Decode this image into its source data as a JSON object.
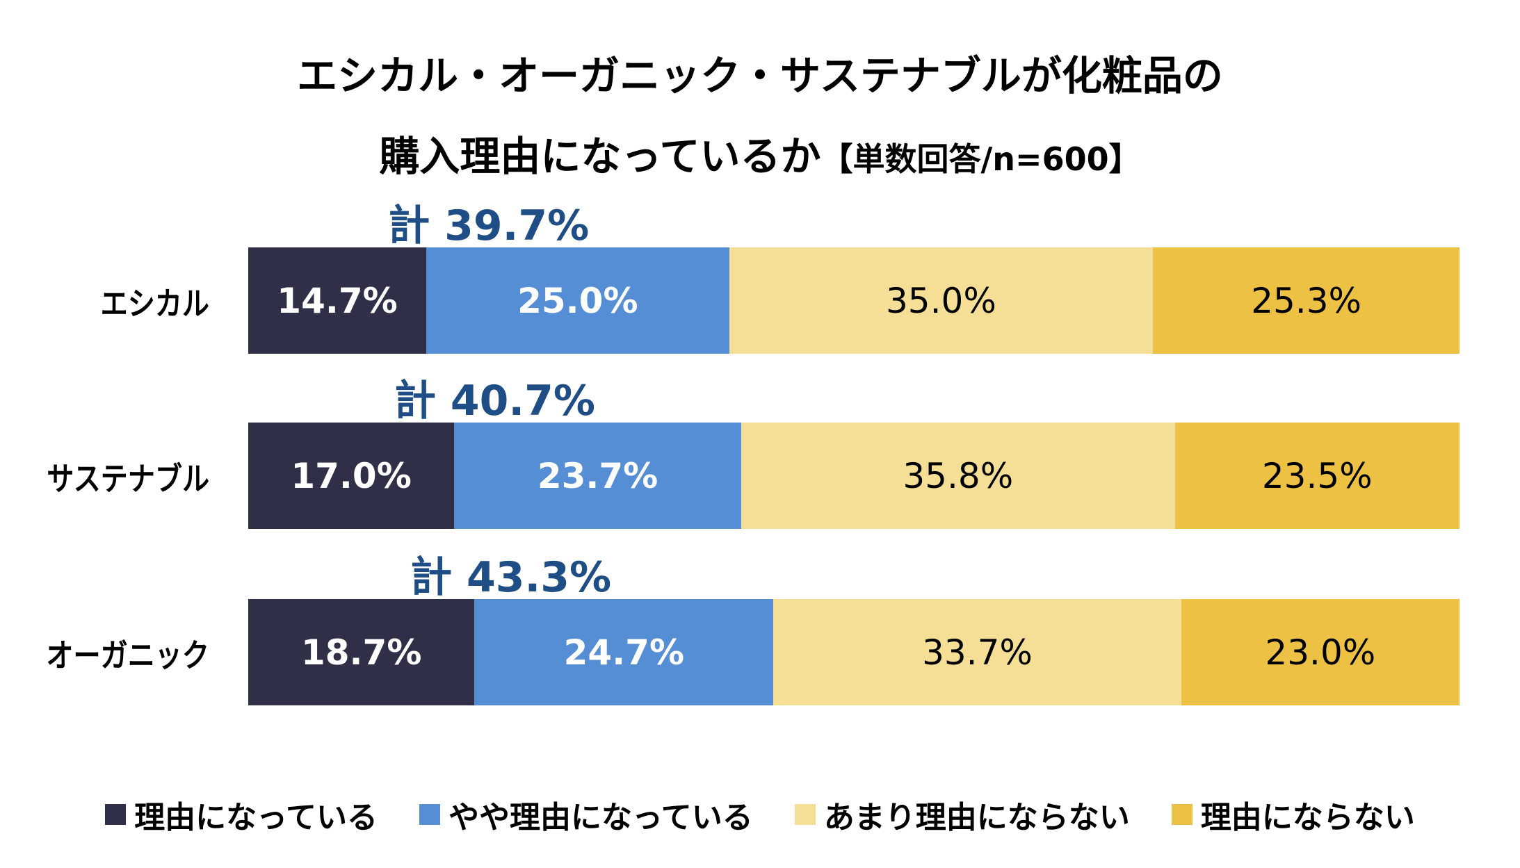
{
  "chart_data": {
    "type": "bar",
    "orientation": "horizontal-stacked-100",
    "title_line1": "エシカル・オーガニック・サステナブルが化粧品の",
    "title_line2": "購入理由になっているか",
    "title_note": "【単数回答/n=600】",
    "categories": [
      "エシカル",
      "サステナブル",
      "オーガニック"
    ],
    "series": [
      {
        "name": "理由になっている",
        "color": "#2f2f47",
        "label_color": "#ffffff",
        "bold": true,
        "values": [
          14.7,
          17.0,
          18.7
        ],
        "labels": [
          "14.7%",
          "17.0%",
          "18.7%"
        ]
      },
      {
        "name": "やや理由になっている",
        "color": "#558ed5",
        "label_color": "#ffffff",
        "bold": true,
        "values": [
          25.0,
          23.7,
          24.7
        ],
        "labels": [
          "25.0%",
          "23.7%",
          "24.7%"
        ]
      },
      {
        "name": "あまり理由にならない",
        "color": "#f5df96",
        "label_color": "#000000",
        "bold": false,
        "values": [
          35.0,
          35.8,
          33.7
        ],
        "labels": [
          "35.0%",
          "35.8%",
          "33.7%"
        ]
      },
      {
        "name": "理由にならない",
        "color": "#ecc144",
        "label_color": "#000000",
        "bold": false,
        "values": [
          25.3,
          23.5,
          23.0
        ],
        "labels": [
          "25.3%",
          "23.5%",
          "23.0%"
        ]
      }
    ],
    "totals": [
      "計 39.7%",
      "計 40.7%",
      "計 43.3%"
    ],
    "total_color": "#1f4e86",
    "xlim": [
      0,
      100
    ],
    "legend_position": "bottom",
    "grid": false
  }
}
